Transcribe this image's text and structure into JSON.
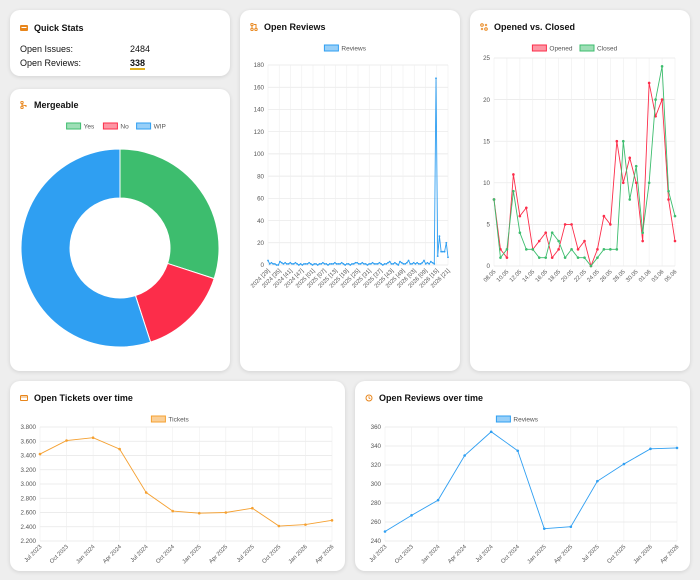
{
  "quick_stats": {
    "title": "Quick Stats",
    "rows": [
      {
        "label": "Open Issues:",
        "value": "2484"
      },
      {
        "label": "Open Reviews:",
        "value": "338"
      }
    ]
  },
  "colors": {
    "green": "#3dbd6e",
    "red": "#fc2d4a",
    "blue": "#2f9ff2",
    "orange": "#f5a030",
    "icon_orange": "#e8861c"
  },
  "chart_data": [
    {
      "id": "mergeable",
      "type": "pie",
      "title": "Mergeable",
      "labels": [
        "Yes",
        "No",
        "WIP"
      ],
      "values": [
        30,
        15,
        55
      ],
      "colors": [
        "#3dbd6e",
        "#fc2d4a",
        "#2f9ff2"
      ],
      "legend": "top"
    },
    {
      "id": "open_reviews",
      "type": "line",
      "title": "Open Reviews",
      "series": [
        {
          "name": "Reviews",
          "values": [
            4,
            1,
            2,
            1,
            1,
            0,
            0,
            3,
            2,
            1,
            2,
            1,
            1,
            2,
            1,
            1,
            2,
            1,
            0,
            1,
            0,
            1,
            1,
            1,
            2,
            1,
            0,
            1,
            1,
            0,
            1,
            1,
            2,
            1,
            1,
            0,
            1,
            1,
            1,
            2,
            1,
            1,
            1,
            2,
            1,
            0,
            1,
            1,
            0,
            1,
            1,
            2,
            2,
            1,
            1,
            2,
            1,
            1,
            0,
            1,
            1,
            2,
            1,
            1,
            1,
            2,
            1,
            0,
            1,
            1,
            2,
            3,
            1,
            1,
            2,
            1,
            0,
            3,
            2,
            1,
            1,
            2,
            4,
            1,
            1,
            2,
            1,
            2,
            1,
            1,
            2,
            4,
            1,
            2,
            1,
            3,
            2,
            1,
            168,
            8,
            26,
            12,
            12,
            12,
            20,
            7
          ]
        }
      ],
      "ylim": [
        0,
        180
      ],
      "yticks": [
        0,
        20,
        40,
        60,
        80,
        100,
        120,
        140,
        160,
        180
      ],
      "xtick_labels": [
        "2024 [29]",
        "2024 [35]",
        "2024 [41]",
        "2024 [47]",
        "2025 [01]",
        "2025 [07]",
        "2025 [13]",
        "2025 [19]",
        "2025 [25]",
        "2025 [31]",
        "2025 [37]",
        "2025 [43]",
        "2025 [49]",
        "2026 [03]",
        "2026 [09]",
        "2026 [15]",
        "2026 [21]"
      ],
      "legend": "top"
    },
    {
      "id": "opened_vs_closed",
      "type": "line",
      "title": "Opened vs. Closed",
      "categories": [
        "08.05",
        "09.05",
        "10.05",
        "11.05",
        "12.05",
        "13.05",
        "14.05",
        "15.05",
        "16.05",
        "17.05",
        "18.05",
        "19.05",
        "20.05",
        "21.05",
        "22.05",
        "23.05",
        "24.05",
        "25.05",
        "26.05",
        "27.05",
        "28.05",
        "29.05",
        "30.05",
        "31.05",
        "01.06",
        "02.06",
        "03.06",
        "04.06",
        "05.06"
      ],
      "xtick_labels": [
        "08.05",
        "10.05",
        "12.05",
        "14.05",
        "16.05",
        "18.05",
        "20.05",
        "22.05",
        "24.05",
        "26.05",
        "28.05",
        "30.05",
        "01.06",
        "03.06",
        "05.06"
      ],
      "series": [
        {
          "name": "Opened",
          "values": [
            8,
            2,
            1,
            11,
            6,
            7,
            2,
            3,
            4,
            1,
            2,
            5,
            5,
            2,
            3,
            0,
            2,
            6,
            5,
            15,
            10,
            13,
            10,
            3,
            22,
            18,
            20,
            8,
            3
          ]
        },
        {
          "name": "Closed",
          "values": [
            8,
            1,
            2,
            9,
            4,
            2,
            2,
            1,
            1,
            4,
            3,
            1,
            2,
            1,
            1,
            0,
            1,
            2,
            2,
            2,
            15,
            8,
            12,
            4,
            10,
            20,
            24,
            9,
            6
          ]
        }
      ],
      "colors": [
        "#fc2d4a",
        "#3dbd6e"
      ],
      "ylim": [
        0,
        25
      ],
      "yticks": [
        0,
        5,
        10,
        15,
        20,
        25
      ],
      "legend": "top"
    },
    {
      "id": "open_tickets",
      "type": "line",
      "title": "Open Tickets over time",
      "categories": [
        "Jul 2023",
        "Oct 2023",
        "Jan 2024",
        "Apr 2024",
        "Jul 2024",
        "Oct 2024",
        "Jan 2025",
        "Apr 2025",
        "Jul 2025",
        "Oct 2025",
        "Jan 2026",
        "Apr 2026"
      ],
      "series": [
        {
          "name": "Tickets",
          "values": [
            3420,
            3610,
            3650,
            3490,
            2880,
            2620,
            2590,
            2600,
            2660,
            2410,
            2430,
            2490
          ]
        }
      ],
      "ylim": [
        2200,
        3800
      ],
      "yticks": [
        2200,
        2400,
        2600,
        2800,
        3000,
        3200,
        3400,
        3600,
        3800
      ],
      "ytick_labels": [
        "2.200",
        "2.400",
        "2.600",
        "2.800",
        "3.000",
        "3.200",
        "3.400",
        "3.600",
        "3.800"
      ],
      "legend": "top"
    },
    {
      "id": "open_reviews_over_time",
      "type": "line",
      "title": "Open Reviews over time",
      "categories": [
        "Jul 2023",
        "Oct 2023",
        "Jan 2024",
        "Apr 2024",
        "Jul 2024",
        "Oct 2024",
        "Jan 2025",
        "Apr 2025",
        "Jul 2025",
        "Oct 2025",
        "Jan 2026",
        "Apr 2026"
      ],
      "series": [
        {
          "name": "Reviews",
          "values": [
            250,
            267,
            283,
            330,
            355,
            335,
            253,
            255,
            303,
            321,
            337,
            338
          ]
        }
      ],
      "ylim": [
        240,
        360
      ],
      "yticks": [
        240,
        260,
        280,
        300,
        320,
        340,
        360
      ],
      "legend": "top"
    }
  ]
}
